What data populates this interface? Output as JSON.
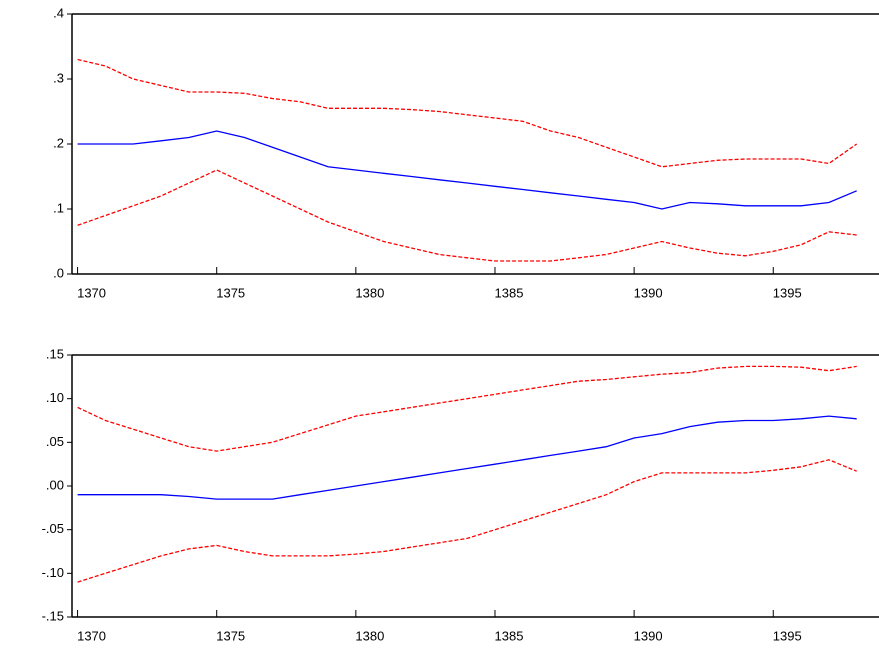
{
  "chart_data": [
    {
      "type": "line",
      "x": [
        1370,
        1371,
        1372,
        1373,
        1374,
        1375,
        1376,
        1377,
        1378,
        1379,
        1380,
        1381,
        1382,
        1383,
        1384,
        1385,
        1386,
        1387,
        1388,
        1389,
        1390,
        1391,
        1392,
        1393,
        1394,
        1395,
        1396,
        1397,
        1398
      ],
      "xlim": [
        1369.8,
        1398.8
      ],
      "xticks": [
        1370,
        1375,
        1380,
        1385,
        1390,
        1395
      ],
      "ylim": [
        0,
        0.4
      ],
      "yticks": [
        {
          "value": 0,
          "label": ".0"
        },
        {
          "value": 0.1,
          "label": ".1"
        },
        {
          "value": 0.2,
          "label": ".2"
        },
        {
          "value": 0.3,
          "label": ".3"
        },
        {
          "value": 0.4,
          "label": ".4"
        }
      ],
      "series": [
        {
          "color": "#0000ff",
          "dash": false,
          "values": [
            0.2,
            0.2,
            0.2,
            0.205,
            0.21,
            0.22,
            0.21,
            0.195,
            0.18,
            0.165,
            0.16,
            0.155,
            0.15,
            0.145,
            0.14,
            0.135,
            0.13,
            0.125,
            0.12,
            0.115,
            0.11,
            0.1,
            0.11,
            0.108,
            0.105,
            0.105,
            0.105,
            0.11,
            0.128
          ]
        },
        {
          "color": "#ff0000",
          "dash": true,
          "values": [
            0.33,
            0.32,
            0.3,
            0.29,
            0.28,
            0.28,
            0.278,
            0.27,
            0.265,
            0.255,
            0.255,
            0.255,
            0.253,
            0.25,
            0.245,
            0.24,
            0.235,
            0.22,
            0.21,
            0.195,
            0.18,
            0.165,
            0.17,
            0.175,
            0.177,
            0.177,
            0.177,
            0.17,
            0.2
          ]
        },
        {
          "color": "#ff0000",
          "dash": true,
          "values": [
            0.075,
            0.09,
            0.105,
            0.12,
            0.14,
            0.16,
            0.14,
            0.12,
            0.1,
            0.08,
            0.065,
            0.05,
            0.04,
            0.03,
            0.025,
            0.02,
            0.02,
            0.02,
            0.025,
            0.03,
            0.04,
            0.05,
            0.04,
            0.032,
            0.028,
            0.035,
            0.045,
            0.065,
            0.06
          ]
        }
      ]
    },
    {
      "type": "line",
      "x": [
        1370,
        1371,
        1372,
        1373,
        1374,
        1375,
        1376,
        1377,
        1378,
        1379,
        1380,
        1381,
        1382,
        1383,
        1384,
        1385,
        1386,
        1387,
        1388,
        1389,
        1390,
        1391,
        1392,
        1393,
        1394,
        1395,
        1396,
        1397,
        1398
      ],
      "xlim": [
        1369.8,
        1398.8
      ],
      "xticks": [
        1370,
        1375,
        1380,
        1385,
        1390,
        1395
      ],
      "ylim": [
        -0.15,
        0.15
      ],
      "yticks": [
        {
          "value": -0.15,
          "label": "-.15"
        },
        {
          "value": -0.1,
          "label": "-.10"
        },
        {
          "value": -0.05,
          "label": "-.05"
        },
        {
          "value": 0,
          "label": ".00"
        },
        {
          "value": 0.05,
          "label": ".05"
        },
        {
          "value": 0.1,
          "label": ".10"
        },
        {
          "value": 0.15,
          "label": ".15"
        }
      ],
      "series": [
        {
          "color": "#0000ff",
          "dash": false,
          "values": [
            -0.01,
            -0.01,
            -0.01,
            -0.01,
            -0.012,
            -0.015,
            -0.015,
            -0.015,
            -0.01,
            -0.005,
            0,
            0.005,
            0.01,
            0.015,
            0.02,
            0.025,
            0.03,
            0.035,
            0.04,
            0.045,
            0.055,
            0.06,
            0.068,
            0.073,
            0.075,
            0.075,
            0.077,
            0.08,
            0.077
          ]
        },
        {
          "color": "#ff0000",
          "dash": true,
          "values": [
            0.09,
            0.075,
            0.065,
            0.055,
            0.045,
            0.04,
            0.045,
            0.05,
            0.06,
            0.07,
            0.08,
            0.085,
            0.09,
            0.095,
            0.1,
            0.105,
            0.11,
            0.115,
            0.12,
            0.122,
            0.125,
            0.128,
            0.13,
            0.135,
            0.137,
            0.137,
            0.136,
            0.132,
            0.137
          ]
        },
        {
          "color": "#ff0000",
          "dash": true,
          "values": [
            -0.11,
            -0.1,
            -0.09,
            -0.08,
            -0.072,
            -0.068,
            -0.075,
            -0.08,
            -0.08,
            -0.08,
            -0.078,
            -0.075,
            -0.07,
            -0.065,
            -0.06,
            -0.05,
            -0.04,
            -0.03,
            -0.02,
            -0.01,
            0.005,
            0.015,
            0.015,
            0.015,
            0.015,
            0.018,
            0.022,
            0.03,
            0.017
          ]
        }
      ]
    }
  ]
}
